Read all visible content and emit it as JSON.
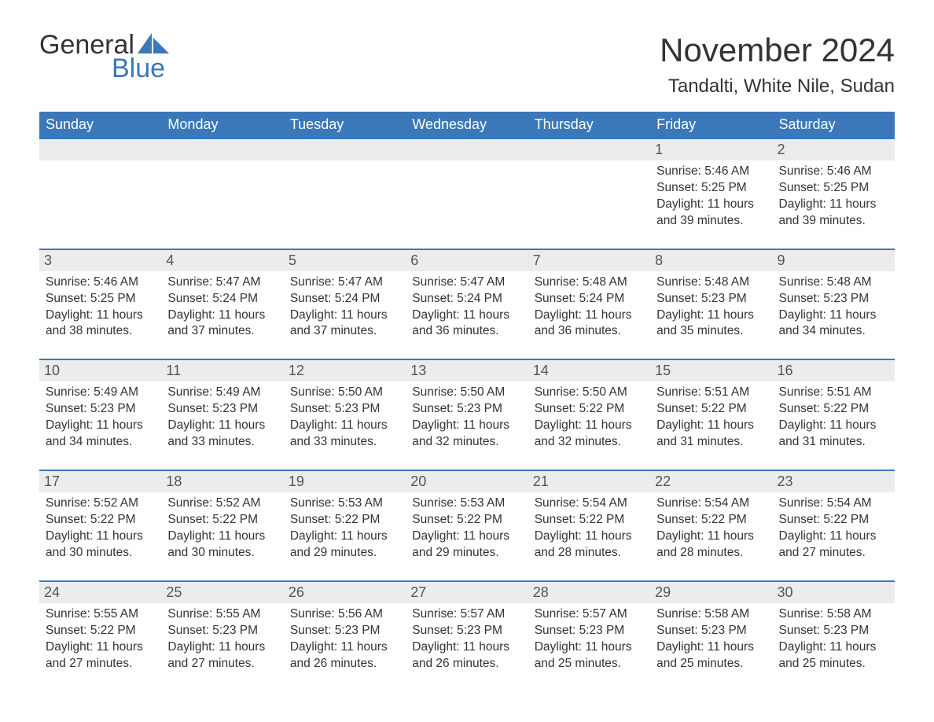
{
  "logo": {
    "word1": "General",
    "word2": "Blue"
  },
  "title": "November 2024",
  "location": "Tandalti, White Nile, Sudan",
  "colors": {
    "header_bg": "#3b78b9",
    "header_text": "#ffffff",
    "daynum_bg": "#ececec",
    "border": "#3b78b9",
    "text": "#333333",
    "logo_blue": "#3b78b9"
  },
  "weekdays": [
    "Sunday",
    "Monday",
    "Tuesday",
    "Wednesday",
    "Thursday",
    "Friday",
    "Saturday"
  ],
  "weeks": [
    [
      null,
      null,
      null,
      null,
      null,
      {
        "n": "1",
        "sr": "5:46 AM",
        "ss": "5:25 PM",
        "dl": "11 hours and 39 minutes."
      },
      {
        "n": "2",
        "sr": "5:46 AM",
        "ss": "5:25 PM",
        "dl": "11 hours and 39 minutes."
      }
    ],
    [
      {
        "n": "3",
        "sr": "5:46 AM",
        "ss": "5:25 PM",
        "dl": "11 hours and 38 minutes."
      },
      {
        "n": "4",
        "sr": "5:47 AM",
        "ss": "5:24 PM",
        "dl": "11 hours and 37 minutes."
      },
      {
        "n": "5",
        "sr": "5:47 AM",
        "ss": "5:24 PM",
        "dl": "11 hours and 37 minutes."
      },
      {
        "n": "6",
        "sr": "5:47 AM",
        "ss": "5:24 PM",
        "dl": "11 hours and 36 minutes."
      },
      {
        "n": "7",
        "sr": "5:48 AM",
        "ss": "5:24 PM",
        "dl": "11 hours and 36 minutes."
      },
      {
        "n": "8",
        "sr": "5:48 AM",
        "ss": "5:23 PM",
        "dl": "11 hours and 35 minutes."
      },
      {
        "n": "9",
        "sr": "5:48 AM",
        "ss": "5:23 PM",
        "dl": "11 hours and 34 minutes."
      }
    ],
    [
      {
        "n": "10",
        "sr": "5:49 AM",
        "ss": "5:23 PM",
        "dl": "11 hours and 34 minutes."
      },
      {
        "n": "11",
        "sr": "5:49 AM",
        "ss": "5:23 PM",
        "dl": "11 hours and 33 minutes."
      },
      {
        "n": "12",
        "sr": "5:50 AM",
        "ss": "5:23 PM",
        "dl": "11 hours and 33 minutes."
      },
      {
        "n": "13",
        "sr": "5:50 AM",
        "ss": "5:23 PM",
        "dl": "11 hours and 32 minutes."
      },
      {
        "n": "14",
        "sr": "5:50 AM",
        "ss": "5:22 PM",
        "dl": "11 hours and 32 minutes."
      },
      {
        "n": "15",
        "sr": "5:51 AM",
        "ss": "5:22 PM",
        "dl": "11 hours and 31 minutes."
      },
      {
        "n": "16",
        "sr": "5:51 AM",
        "ss": "5:22 PM",
        "dl": "11 hours and 31 minutes."
      }
    ],
    [
      {
        "n": "17",
        "sr": "5:52 AM",
        "ss": "5:22 PM",
        "dl": "11 hours and 30 minutes."
      },
      {
        "n": "18",
        "sr": "5:52 AM",
        "ss": "5:22 PM",
        "dl": "11 hours and 30 minutes."
      },
      {
        "n": "19",
        "sr": "5:53 AM",
        "ss": "5:22 PM",
        "dl": "11 hours and 29 minutes."
      },
      {
        "n": "20",
        "sr": "5:53 AM",
        "ss": "5:22 PM",
        "dl": "11 hours and 29 minutes."
      },
      {
        "n": "21",
        "sr": "5:54 AM",
        "ss": "5:22 PM",
        "dl": "11 hours and 28 minutes."
      },
      {
        "n": "22",
        "sr": "5:54 AM",
        "ss": "5:22 PM",
        "dl": "11 hours and 28 minutes."
      },
      {
        "n": "23",
        "sr": "5:54 AM",
        "ss": "5:22 PM",
        "dl": "11 hours and 27 minutes."
      }
    ],
    [
      {
        "n": "24",
        "sr": "5:55 AM",
        "ss": "5:22 PM",
        "dl": "11 hours and 27 minutes."
      },
      {
        "n": "25",
        "sr": "5:55 AM",
        "ss": "5:23 PM",
        "dl": "11 hours and 27 minutes."
      },
      {
        "n": "26",
        "sr": "5:56 AM",
        "ss": "5:23 PM",
        "dl": "11 hours and 26 minutes."
      },
      {
        "n": "27",
        "sr": "5:57 AM",
        "ss": "5:23 PM",
        "dl": "11 hours and 26 minutes."
      },
      {
        "n": "28",
        "sr": "5:57 AM",
        "ss": "5:23 PM",
        "dl": "11 hours and 25 minutes."
      },
      {
        "n": "29",
        "sr": "5:58 AM",
        "ss": "5:23 PM",
        "dl": "11 hours and 25 minutes."
      },
      {
        "n": "30",
        "sr": "5:58 AM",
        "ss": "5:23 PM",
        "dl": "11 hours and 25 minutes."
      }
    ]
  ],
  "labels": {
    "sunrise": "Sunrise: ",
    "sunset": "Sunset: ",
    "daylight": "Daylight: "
  }
}
